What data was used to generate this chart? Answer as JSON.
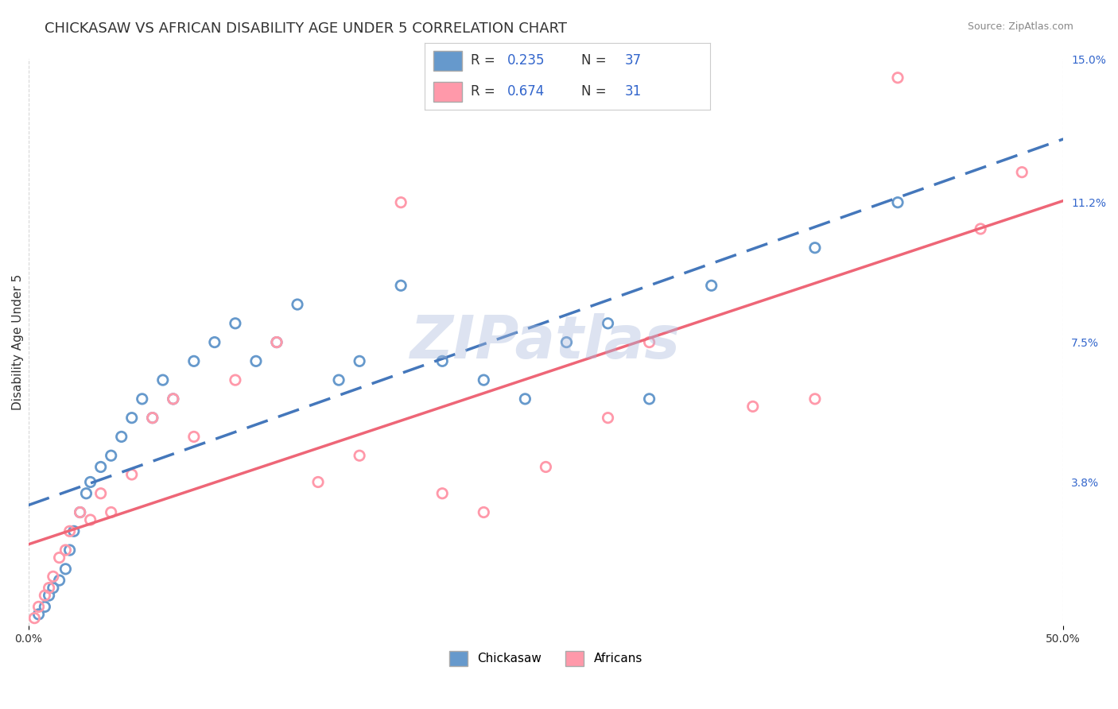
{
  "title": "CHICKASAW VS AFRICAN DISABILITY AGE UNDER 5 CORRELATION CHART",
  "source": "Source: ZipAtlas.com",
  "ylabel": "Disability Age Under 5",
  "r_chickasaw": 0.235,
  "n_chickasaw": 37,
  "r_african": 0.674,
  "n_african": 31,
  "xlim": [
    0,
    50
  ],
  "ylim": [
    0,
    15
  ],
  "ytick_labels_right": [
    "3.8%",
    "7.5%",
    "11.2%",
    "15.0%"
  ],
  "ytick_vals_right": [
    3.8,
    7.5,
    11.2,
    15.0
  ],
  "color_chickasaw": "#6699cc",
  "color_african": "#ff99aa",
  "color_line_chickasaw": "#4477bb",
  "color_line_african": "#ee6677",
  "watermark_text": "ZIPatlas",
  "watermark_color": "#aabbdd",
  "background_color": "#ffffff",
  "grid_color": "#cccccc",
  "chickasaw_x": [
    0.5,
    0.8,
    1.0,
    1.2,
    1.5,
    1.8,
    2.0,
    2.2,
    2.5,
    2.8,
    3.0,
    3.5,
    4.0,
    4.5,
    5.0,
    5.5,
    6.0,
    6.5,
    7.0,
    8.0,
    9.0,
    10.0,
    11.0,
    12.0,
    13.0,
    15.0,
    16.0,
    18.0,
    20.0,
    22.0,
    24.0,
    26.0,
    28.0,
    30.0,
    33.0,
    38.0,
    42.0
  ],
  "chickasaw_y": [
    0.3,
    0.5,
    0.8,
    1.0,
    1.2,
    1.5,
    2.0,
    2.5,
    3.0,
    3.5,
    3.8,
    4.2,
    4.5,
    5.0,
    5.5,
    6.0,
    5.5,
    6.5,
    6.0,
    7.0,
    7.5,
    8.0,
    7.0,
    7.5,
    8.5,
    6.5,
    7.0,
    9.0,
    7.0,
    6.5,
    6.0,
    7.5,
    8.0,
    6.0,
    9.0,
    10.0,
    11.2
  ],
  "african_x": [
    0.3,
    0.5,
    0.8,
    1.0,
    1.2,
    1.5,
    1.8,
    2.0,
    2.5,
    3.0,
    3.5,
    4.0,
    5.0,
    6.0,
    7.0,
    8.0,
    10.0,
    12.0,
    14.0,
    16.0,
    18.0,
    20.0,
    22.0,
    25.0,
    28.0,
    30.0,
    35.0,
    38.0,
    42.0,
    46.0,
    48.0
  ],
  "african_y": [
    0.2,
    0.5,
    0.8,
    1.0,
    1.3,
    1.8,
    2.0,
    2.5,
    3.0,
    2.8,
    3.5,
    3.0,
    4.0,
    5.5,
    6.0,
    5.0,
    6.5,
    7.5,
    3.8,
    4.5,
    11.2,
    3.5,
    3.0,
    4.2,
    5.5,
    7.5,
    5.8,
    6.0,
    14.5,
    10.5,
    12.0
  ],
  "title_fontsize": 13,
  "axis_label_fontsize": 11,
  "tick_fontsize": 10,
  "legend_fontsize": 12
}
